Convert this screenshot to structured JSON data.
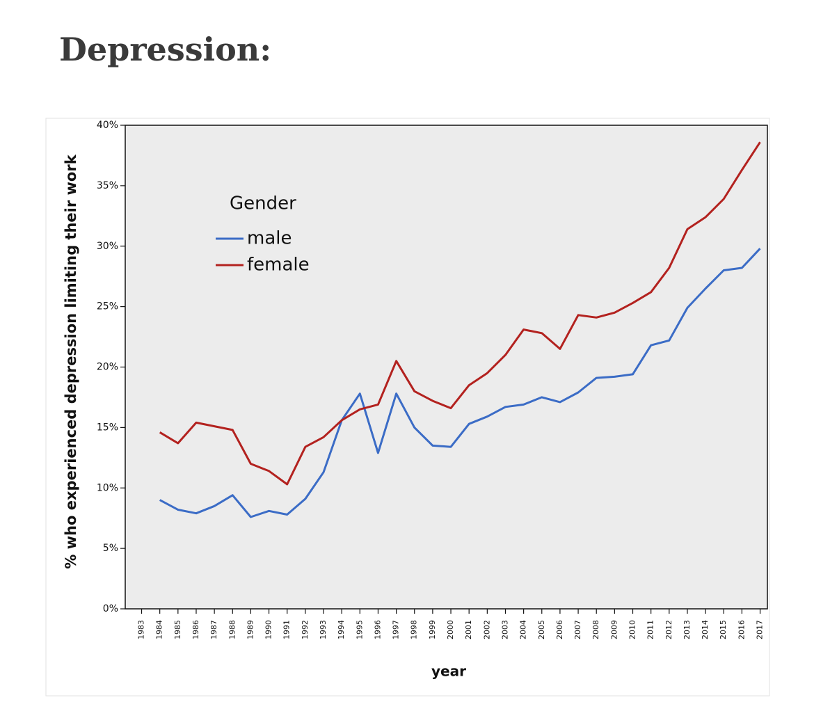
{
  "chart_data": {
    "type": "line",
    "title": "Depression:",
    "x_label": "year",
    "y_label": "% who experienced depression limiting their work",
    "legend_title": "Gender",
    "legend": "upper left",
    "x": [
      1983,
      1984,
      1985,
      1986,
      1987,
      1988,
      1989,
      1990,
      1991,
      1992,
      1993,
      1994,
      1995,
      1996,
      1997,
      1998,
      1999,
      2000,
      2001,
      2002,
      2003,
      2004,
      2005,
      2006,
      2007,
      2008,
      2009,
      2010,
      2011,
      2012,
      2013,
      2014,
      2015,
      2016,
      2017
    ],
    "series": [
      {
        "name": "male",
        "color": "#3b6cc6",
        "values": [
          null,
          9.0,
          8.2,
          7.9,
          8.5,
          9.4,
          7.6,
          8.1,
          7.8,
          9.1,
          11.3,
          15.6,
          17.8,
          12.9,
          17.8,
          15.0,
          13.5,
          13.4,
          15.3,
          15.9,
          16.7,
          16.9,
          17.5,
          17.1,
          17.9,
          19.1,
          19.2,
          19.4,
          21.8,
          22.2,
          24.9,
          26.5,
          28.0,
          28.2,
          29.8
        ]
      },
      {
        "name": "female",
        "color": "#b3221f",
        "values": [
          null,
          14.6,
          13.7,
          15.4,
          15.1,
          14.8,
          12.0,
          11.4,
          10.3,
          13.4,
          14.2,
          15.6,
          16.5,
          16.9,
          20.5,
          18.0,
          17.2,
          16.6,
          18.5,
          19.5,
          21.0,
          23.1,
          22.8,
          21.5,
          24.3,
          24.1,
          24.5,
          25.3,
          26.2,
          28.2,
          31.4,
          32.4,
          33.9,
          36.3,
          38.6
        ]
      }
    ],
    "xlim": [
      1982.1,
      2017.4
    ],
    "xticks": [
      1983,
      1984,
      1985,
      1986,
      1987,
      1988,
      1989,
      1990,
      1991,
      1992,
      1993,
      1994,
      1995,
      1996,
      1997,
      1998,
      1999,
      2000,
      2001,
      2002,
      2003,
      2004,
      2005,
      2006,
      2007,
      2008,
      2009,
      2010,
      2011,
      2012,
      2013,
      2014,
      2015,
      2016,
      2017
    ],
    "ylim": [
      0,
      40
    ],
    "yticks": [
      {
        "value": 0,
        "label": "0%"
      },
      {
        "value": 5,
        "label": "5%"
      },
      {
        "value": 10,
        "label": "10%"
      },
      {
        "value": 15,
        "label": "15%"
      },
      {
        "value": 20,
        "label": "20%"
      },
      {
        "value": 25,
        "label": "25%"
      },
      {
        "value": 30,
        "label": "30%"
      },
      {
        "value": 35,
        "label": "35%"
      },
      {
        "value": 40,
        "label": "40%"
      }
    ],
    "grid": false
  }
}
